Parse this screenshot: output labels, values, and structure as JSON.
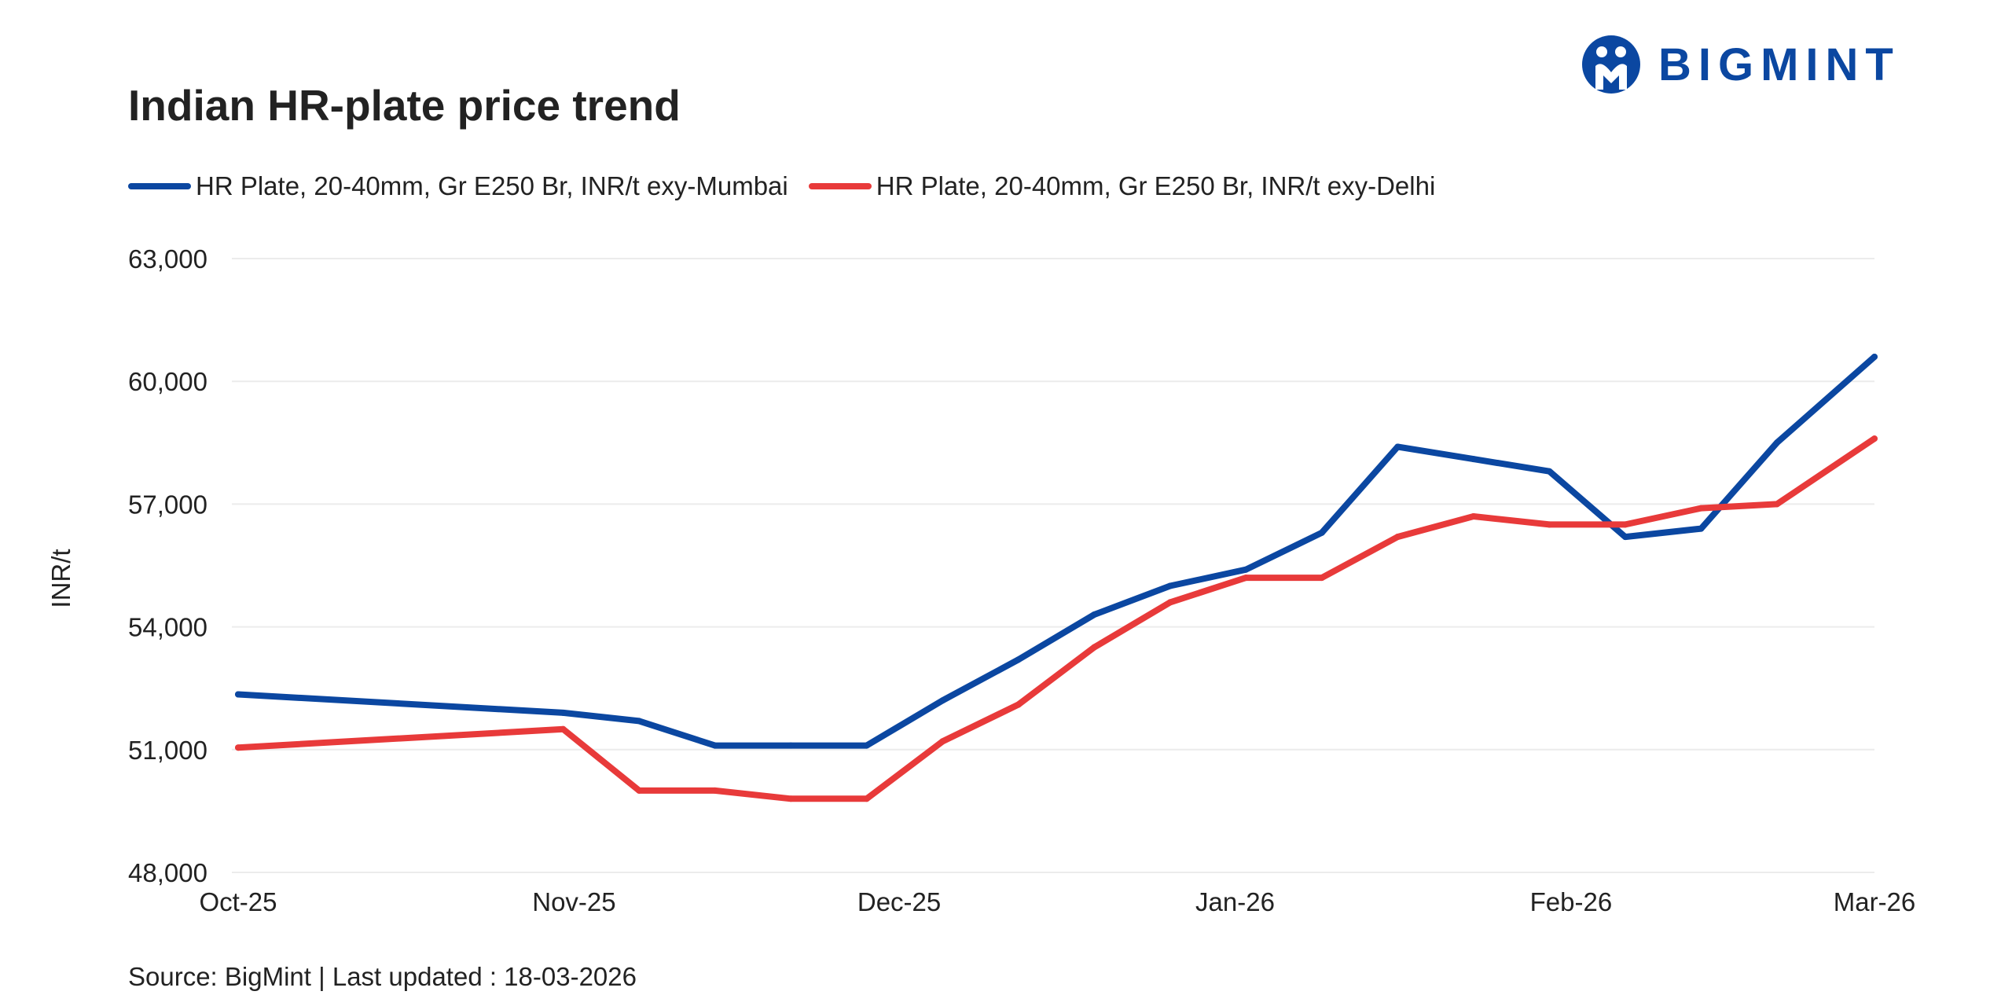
{
  "header": {
    "title": "Indian HR-plate price trend"
  },
  "logo": {
    "text": "BIGMINT",
    "color": "#0b47a1"
  },
  "footer": {
    "source": "Source: BigMint | Last updated : 18-03-2026"
  },
  "chart_data": {
    "type": "line",
    "title": "Indian HR-plate price trend",
    "xlabel": "",
    "ylabel": "INR/t",
    "x_range": [
      "2025-10-01",
      "2026-03-01"
    ],
    "x_ticks": [
      "Oct-25",
      "Nov-25",
      "Dec-25",
      "Jan-26",
      "Feb-26",
      "Mar-26"
    ],
    "ylim": [
      48000,
      63000
    ],
    "y_ticks": [
      48000,
      51000,
      54000,
      57000,
      60000,
      63000
    ],
    "y_tick_labels": [
      "48,000",
      "51,000",
      "54,000",
      "57,000",
      "60,000",
      "63,000"
    ],
    "grid": "horizontal",
    "legend_position": "top-left",
    "series": [
      {
        "name": "HR Plate, 20-40mm, Gr E250 Br, INR/t exy-Mumbai",
        "color": "#0b47a1",
        "points": [
          [
            "2025-10-01",
            52350
          ],
          [
            "2025-10-31",
            51900
          ],
          [
            "2025-11-07",
            51700
          ],
          [
            "2025-11-14",
            51100
          ],
          [
            "2025-11-21",
            51100
          ],
          [
            "2025-11-28",
            51100
          ],
          [
            "2025-12-05",
            52200
          ],
          [
            "2025-12-12",
            53200
          ],
          [
            "2025-12-19",
            54300
          ],
          [
            "2025-12-26",
            55000
          ],
          [
            "2026-01-02",
            55400
          ],
          [
            "2026-01-09",
            56300
          ],
          [
            "2026-01-16",
            58400
          ],
          [
            "2026-01-23",
            58100
          ],
          [
            "2026-01-30",
            57800
          ],
          [
            "2026-02-06",
            56200
          ],
          [
            "2026-02-13",
            56400
          ],
          [
            "2026-02-20",
            58500
          ],
          [
            "2026-03-01",
            60600
          ]
        ]
      },
      {
        "name": "HR Plate, 20-40mm, Gr E250 Br, INR/t exy-Delhi",
        "color": "#e83a3a",
        "points": [
          [
            "2025-10-01",
            51050
          ],
          [
            "2025-10-31",
            51500
          ],
          [
            "2025-11-07",
            50000
          ],
          [
            "2025-11-14",
            50000
          ],
          [
            "2025-11-21",
            49800
          ],
          [
            "2025-11-28",
            49800
          ],
          [
            "2025-12-05",
            51200
          ],
          [
            "2025-12-12",
            52100
          ],
          [
            "2025-12-19",
            53500
          ],
          [
            "2025-12-26",
            54600
          ],
          [
            "2026-01-02",
            55200
          ],
          [
            "2026-01-09",
            55200
          ],
          [
            "2026-01-16",
            56200
          ],
          [
            "2026-01-23",
            56700
          ],
          [
            "2026-01-30",
            56500
          ],
          [
            "2026-02-06",
            56500
          ],
          [
            "2026-02-13",
            56900
          ],
          [
            "2026-02-20",
            57000
          ],
          [
            "2026-03-01",
            58600
          ]
        ]
      }
    ]
  }
}
